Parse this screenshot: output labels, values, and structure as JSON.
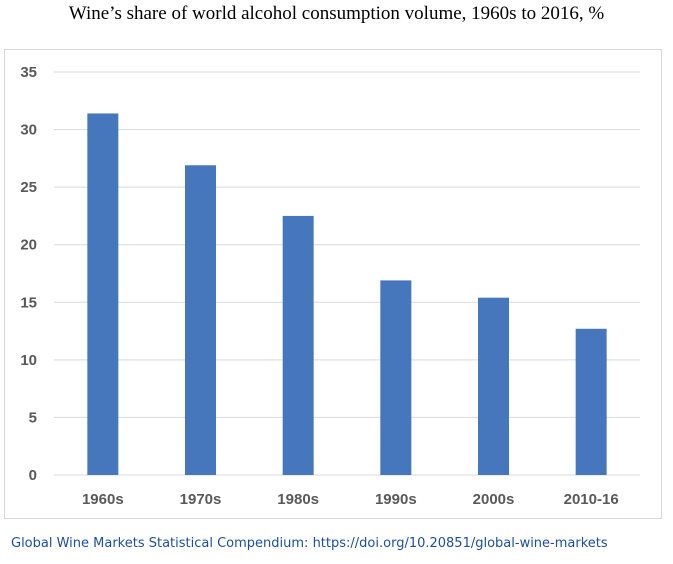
{
  "header": {
    "title": "Wine’s share of world alcohol consumption volume, 1960s to 2016, %"
  },
  "source": {
    "text": "Global Wine Markets Statistical Compendium: https://doi.org/10.20851/global-wine-markets"
  },
  "colors": {
    "bar": "#4677bc",
    "grid": "#d9d9d9",
    "axis_text": "#595959",
    "source_text": "#1f4e9c"
  },
  "chart_data": {
    "type": "bar",
    "title": "Wine’s share of world alcohol consumption volume, 1960s to 2016, %",
    "xlabel": "",
    "ylabel": "",
    "categories": [
      "1960s",
      "1970s",
      "1980s",
      "1990s",
      "2000s",
      "2010-16"
    ],
    "values": [
      31.4,
      26.9,
      22.5,
      16.9,
      15.4,
      12.7
    ],
    "ylim": [
      0,
      35
    ],
    "yticks": [
      "0",
      "5",
      "10",
      "15",
      "20",
      "25",
      "30",
      "35"
    ],
    "grid": true,
    "legend": "none"
  }
}
